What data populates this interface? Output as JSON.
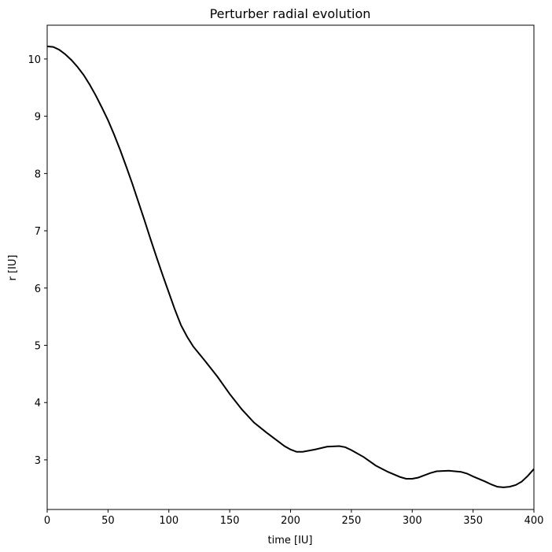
{
  "chart_data": {
    "type": "line",
    "title": "Perturber radial evolution",
    "x_label": "time [IU]",
    "y_label": "r [IU]",
    "x": [
      0,
      5,
      10,
      15,
      20,
      25,
      30,
      35,
      40,
      45,
      50,
      55,
      60,
      65,
      70,
      75,
      80,
      85,
      90,
      95,
      100,
      105,
      110,
      115,
      120,
      130,
      140,
      150,
      160,
      170,
      180,
      190,
      195,
      200,
      205,
      210,
      220,
      230,
      240,
      245,
      250,
      260,
      270,
      280,
      290,
      295,
      300,
      305,
      310,
      315,
      320,
      330,
      340,
      345,
      350,
      360,
      365,
      370,
      375,
      380,
      385,
      390,
      395,
      400
    ],
    "series": [
      {
        "name": "r",
        "color": "#000000",
        "values": [
          10.22,
          10.21,
          10.16,
          10.08,
          9.98,
          9.86,
          9.72,
          9.55,
          9.36,
          9.15,
          8.93,
          8.68,
          8.41,
          8.12,
          7.82,
          7.5,
          7.18,
          6.85,
          6.53,
          6.22,
          5.92,
          5.62,
          5.35,
          5.15,
          4.98,
          4.72,
          4.45,
          4.15,
          3.88,
          3.65,
          3.48,
          3.32,
          3.24,
          3.18,
          3.14,
          3.14,
          3.18,
          3.23,
          3.24,
          3.22,
          3.17,
          3.05,
          2.9,
          2.79,
          2.7,
          2.67,
          2.67,
          2.69,
          2.73,
          2.77,
          2.8,
          2.81,
          2.79,
          2.76,
          2.71,
          2.62,
          2.57,
          2.53,
          2.52,
          2.53,
          2.56,
          2.62,
          2.72,
          2.84
        ]
      }
    ],
    "xlim": [
      0,
      400
    ],
    "xticks": [
      0,
      50,
      100,
      150,
      200,
      250,
      300,
      350,
      400
    ],
    "ylim": [
      2.133,
      10.59
    ],
    "yticks": [
      3,
      4,
      5,
      6,
      7,
      8,
      9,
      10
    ]
  }
}
